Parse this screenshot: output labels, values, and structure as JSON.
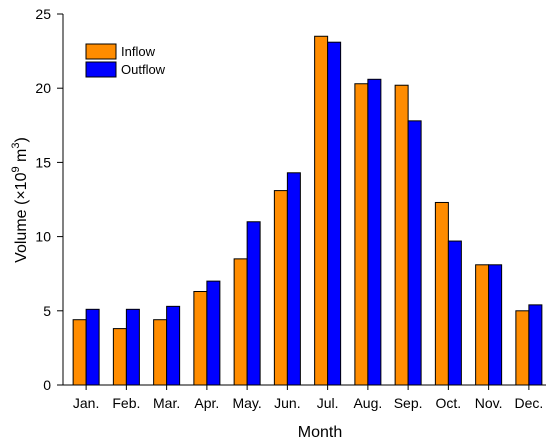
{
  "chart_data": {
    "type": "bar",
    "categories": [
      "Jan.",
      "Feb.",
      "Mar.",
      "Apr.",
      "May.",
      "Jun.",
      "Jul.",
      "Aug.",
      "Sep.",
      "Oct.",
      "Nov.",
      "Dec."
    ],
    "series": [
      {
        "name": "Inflow",
        "color": "#FF8C00",
        "values": [
          4.4,
          3.8,
          4.4,
          6.3,
          8.5,
          13.1,
          23.5,
          20.3,
          20.2,
          12.3,
          8.1,
          5.0
        ]
      },
      {
        "name": "Outflow",
        "color": "#0000FF",
        "values": [
          5.1,
          5.1,
          5.3,
          7.0,
          11.0,
          14.3,
          23.1,
          20.6,
          17.8,
          9.7,
          8.1,
          5.4
        ]
      }
    ],
    "xlabel": "Month",
    "ylabel_prefix": "Volume (×10",
    "ylabel_exp1": "9",
    "ylabel_mid": " m",
    "ylabel_exp2": "3",
    "ylabel_suffix": ")",
    "ylim": [
      0,
      25
    ],
    "yticks": [
      0,
      5,
      10,
      15,
      20,
      25
    ],
    "grid": false,
    "legend_position": "top-left"
  }
}
